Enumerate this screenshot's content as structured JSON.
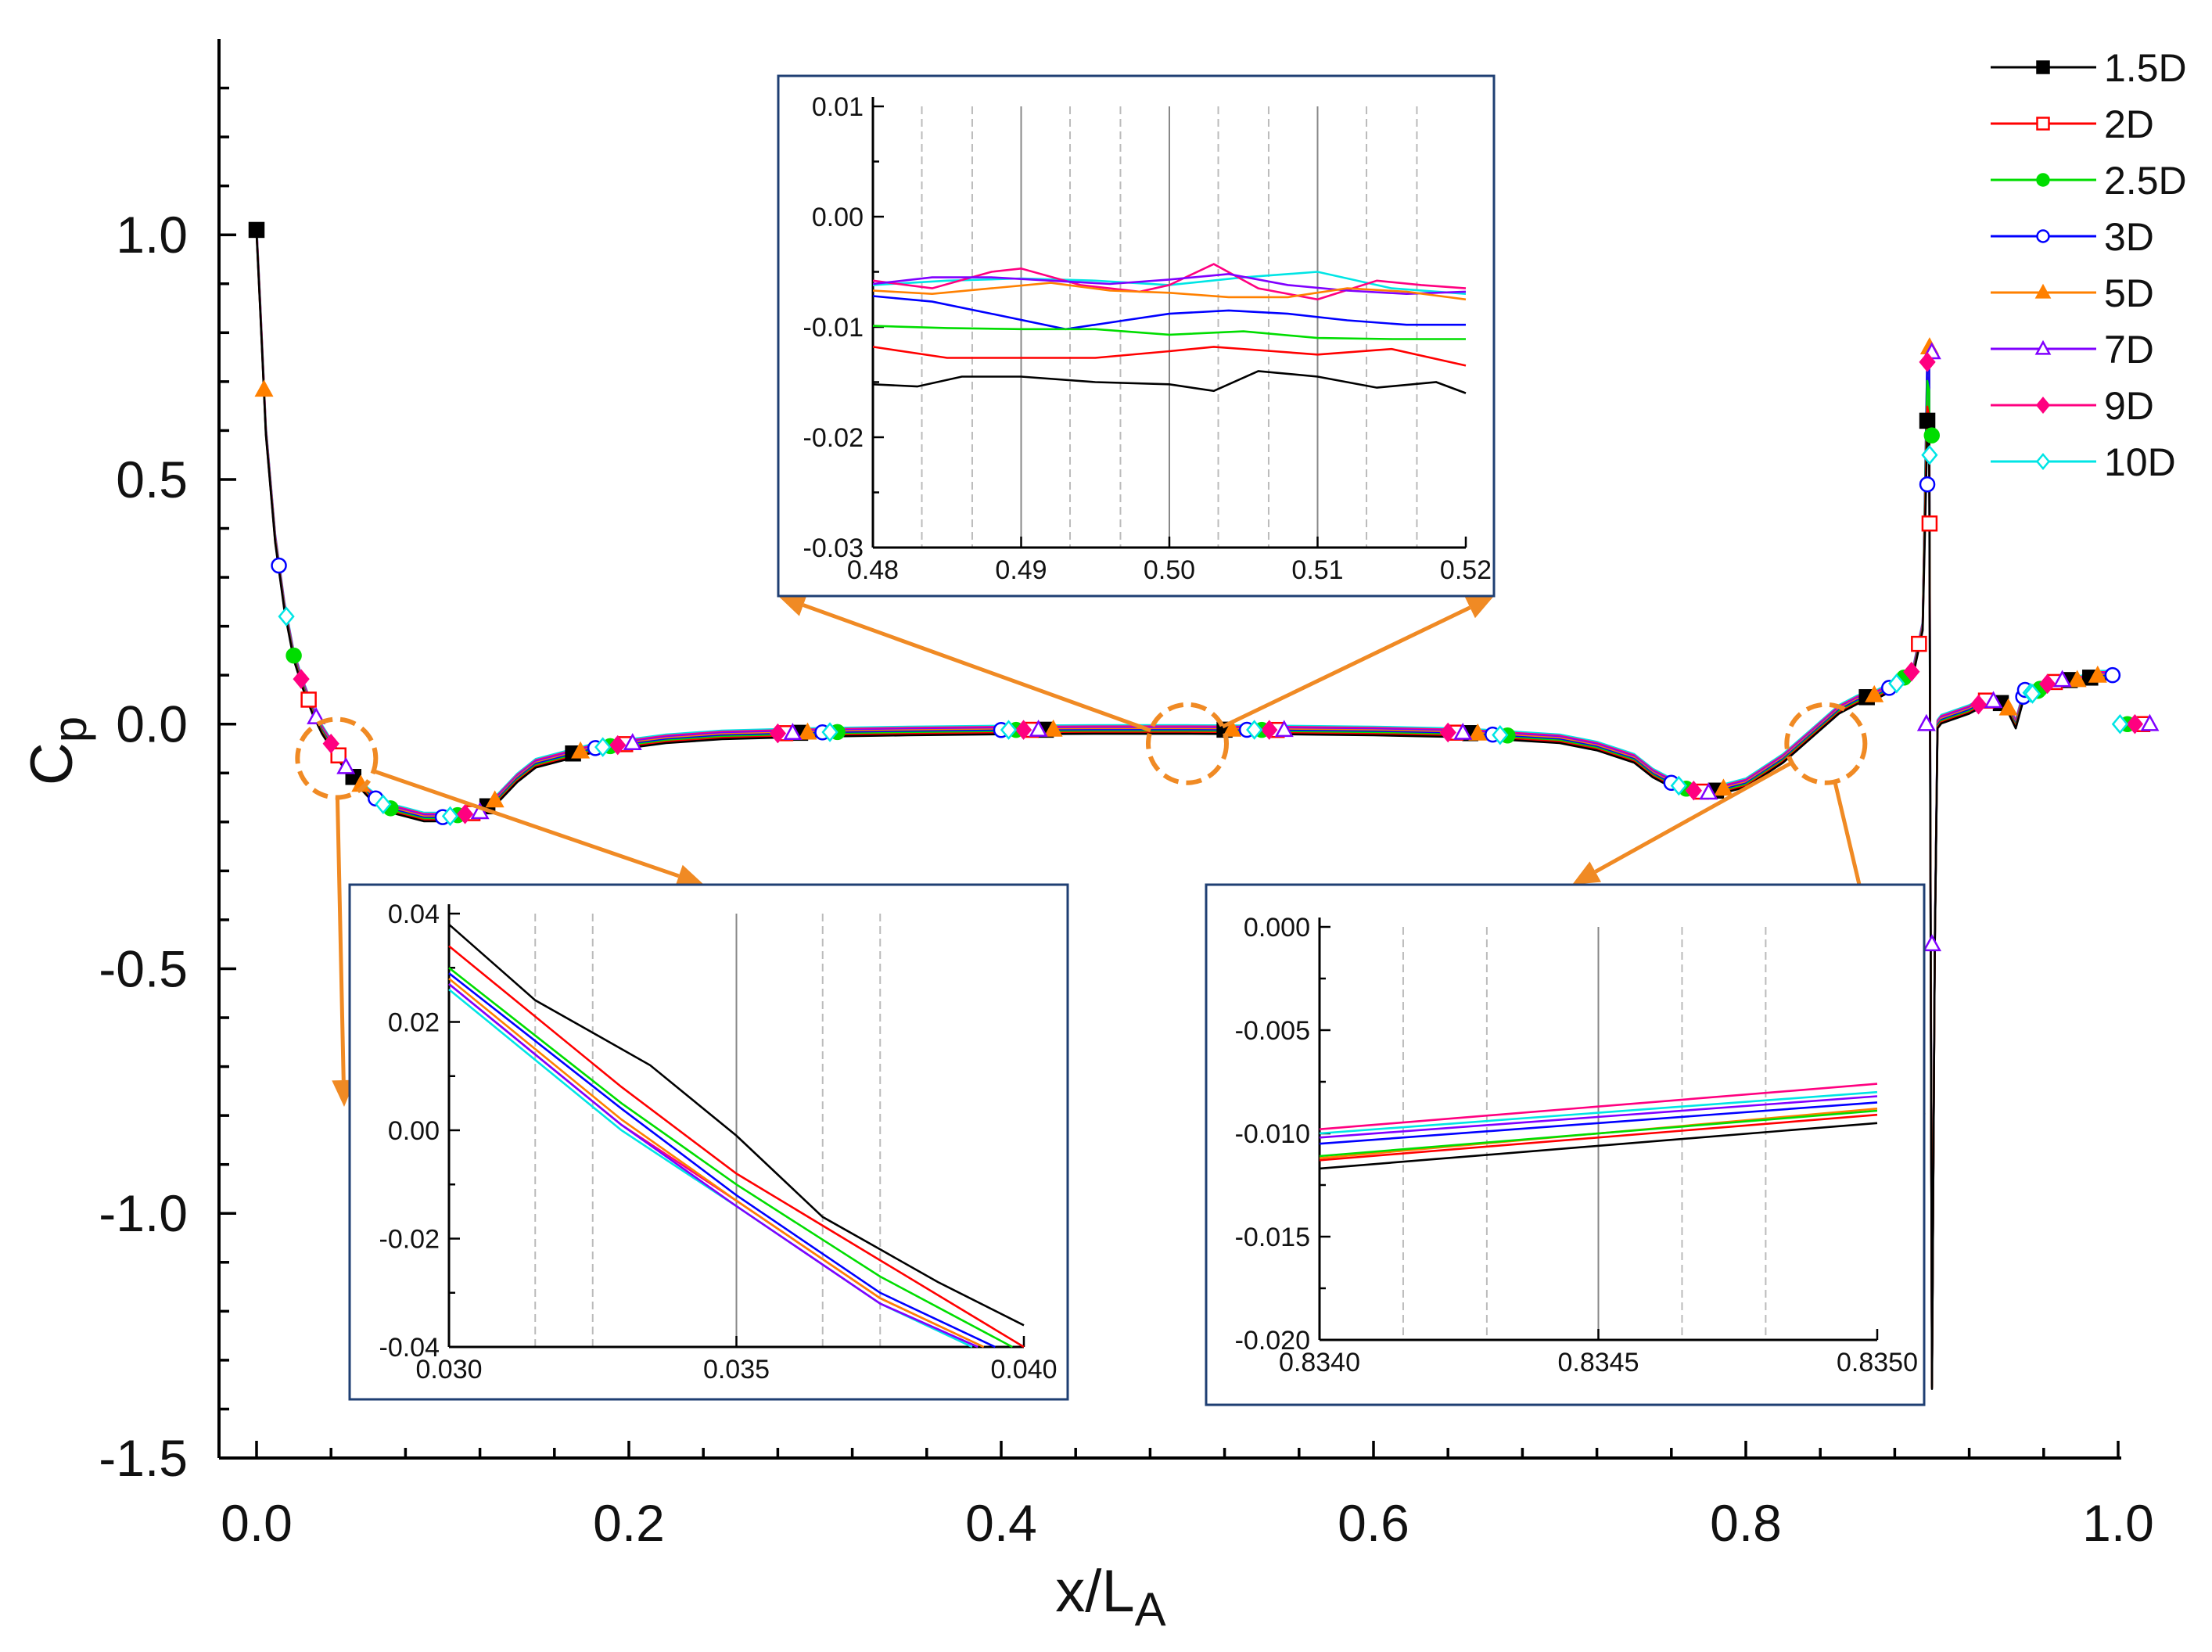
{
  "chart_data": {
    "type": "line",
    "xlabel": "x/L",
    "xlabel_sub": "A",
    "ylabel": "C",
    "ylabel_sub": "p",
    "xlim": [
      0.0,
      1.0
    ],
    "ylim": [
      -1.5,
      1.4
    ],
    "x_tick_labels": [
      "0.0",
      "0.2",
      "0.4",
      "0.6",
      "0.8",
      "1.0"
    ],
    "x_tick_values": [
      0.0,
      0.2,
      0.4,
      0.6,
      0.8,
      1.0
    ],
    "y_tick_labels": [
      "1.0",
      "0.5",
      "0.0",
      "-0.5",
      "-1.0",
      "-1.5"
    ],
    "y_tick_values": [
      1.0,
      0.5,
      0.0,
      -0.5,
      -1.0,
      -1.5
    ],
    "legend_position": "top-right",
    "series": [
      {
        "name": "1.5D",
        "color": "#000000",
        "marker": "square-filled"
      },
      {
        "name": "2D",
        "color": "#ff0000",
        "marker": "square-open"
      },
      {
        "name": "2.5D",
        "color": "#00dd00",
        "marker": "circle-filled"
      },
      {
        "name": "3D",
        "color": "#0000ff",
        "marker": "circle-open"
      },
      {
        "name": "5D",
        "color": "#ff8000",
        "marker": "triangle-filled"
      },
      {
        "name": "7D",
        "color": "#8000ff",
        "marker": "triangle-open"
      },
      {
        "name": "9D",
        "color": "#ff0080",
        "marker": "diamond-filled"
      },
      {
        "name": "10D",
        "color": "#00e5e5",
        "marker": "diamond-open"
      }
    ],
    "main_curve": {
      "x": [
        0.0,
        0.002,
        0.005,
        0.01,
        0.015,
        0.02,
        0.025,
        0.03,
        0.035,
        0.04,
        0.045,
        0.05,
        0.06,
        0.07,
        0.08,
        0.09,
        0.1,
        0.12,
        0.13,
        0.14,
        0.15,
        0.16,
        0.17,
        0.18,
        0.2,
        0.22,
        0.25,
        0.3,
        0.35,
        0.4,
        0.45,
        0.5,
        0.55,
        0.6,
        0.65,
        0.7,
        0.72,
        0.74,
        0.75,
        0.76,
        0.77,
        0.78,
        0.8,
        0.82,
        0.835,
        0.85,
        0.86,
        0.87,
        0.88,
        0.89,
        0.895
      ],
      "y": [
        1.01,
        0.85,
        0.6,
        0.38,
        0.24,
        0.14,
        0.08,
        0.03,
        -0.01,
        -0.04,
        -0.07,
        -0.1,
        -0.14,
        -0.17,
        -0.18,
        -0.19,
        -0.19,
        -0.18,
        -0.15,
        -0.11,
        -0.08,
        -0.07,
        -0.06,
        -0.05,
        -0.04,
        -0.03,
        -0.022,
        -0.017,
        -0.014,
        -0.012,
        -0.011,
        -0.011,
        -0.012,
        -0.014,
        -0.018,
        -0.03,
        -0.045,
        -0.07,
        -0.1,
        -0.12,
        -0.135,
        -0.14,
        -0.12,
        -0.07,
        -0.02,
        0.03,
        0.05,
        0.06,
        0.08,
        0.11,
        0.2
      ]
    },
    "spike_x": [
      0.895,
      0.8975,
      0.8985,
      0.9,
      0.9015,
      0.903,
      0.905
    ],
    "spike_y": [
      0.2,
      0.78,
      0.76,
      -1.35,
      -0.45,
      0.0,
      0.01
    ],
    "tail_x": [
      0.905,
      0.92,
      0.93,
      0.94,
      0.945,
      0.95,
      0.955,
      0.96,
      0.97,
      0.98,
      0.99,
      1.0
    ],
    "tail_y": [
      0.01,
      0.03,
      0.05,
      0.04,
      0.0,
      0.07,
      0.06,
      0.08,
      0.09,
      0.09,
      0.1,
      0.1
    ],
    "spike_point_y": [
      0.62,
      0.41,
      0.59,
      0.49,
      0.77,
      0.76,
      0.74,
      0.55
    ],
    "insets": [
      {
        "id": "left",
        "xlim": [
          0.03,
          0.04
        ],
        "ylim": [
          -0.04,
          0.04
        ],
        "x_tick_labels": [
          "0.030",
          "0.035",
          "0.040"
        ],
        "x_tick_values": [
          0.03,
          0.035,
          0.04
        ],
        "y_tick_labels": [
          "0.04",
          "0.02",
          "0.00",
          "-0.02",
          "-0.04"
        ],
        "y_tick_values": [
          0.04,
          0.02,
          0.0,
          -0.02,
          -0.04
        ],
        "solid_grid": [
          0.035
        ],
        "dashed_grid": [
          0.0315,
          0.0325,
          0.0365,
          0.0375
        ],
        "zoom_center": [
          0.043,
          -0.07
        ],
        "series": [
          {
            "name": "1.5D",
            "x": [
              0.03,
              0.0315,
              0.0325,
              0.0335,
              0.035,
              0.0365,
              0.0375,
              0.0385,
              0.04
            ],
            "y": [
              0.038,
              0.024,
              0.018,
              0.012,
              -0.001,
              -0.016,
              -0.022,
              -0.028,
              -0.036
            ]
          },
          {
            "name": "2D",
            "x": [
              0.03,
              0.033,
              0.035,
              0.0375,
              0.04
            ],
            "y": [
              0.034,
              0.008,
              -0.008,
              -0.024,
              -0.04
            ]
          },
          {
            "name": "2.5D",
            "x": [
              0.03,
              0.033,
              0.035,
              0.0375,
              0.0398
            ],
            "y": [
              0.03,
              0.005,
              -0.01,
              -0.027,
              -0.04
            ]
          },
          {
            "name": "3D",
            "x": [
              0.03,
              0.033,
              0.035,
              0.0375,
              0.0395
            ],
            "y": [
              0.029,
              0.004,
              -0.012,
              -0.03,
              -0.04
            ]
          },
          {
            "name": "5D",
            "x": [
              0.03,
              0.033,
              0.035,
              0.0375,
              0.0393
            ],
            "y": [
              0.028,
              0.002,
              -0.013,
              -0.031,
              -0.04
            ]
          },
          {
            "name": "7D",
            "x": [
              0.03,
              0.033,
              0.035,
              0.0375,
              0.0392
            ],
            "y": [
              0.027,
              0.001,
              -0.014,
              -0.032,
              -0.04
            ]
          },
          {
            "name": "9D",
            "x": [
              0.03,
              0.033,
              0.035,
              0.0375,
              0.0393
            ],
            "y": [
              0.027,
              0.001,
              -0.013,
              -0.031,
              -0.04
            ]
          },
          {
            "name": "10D",
            "x": [
              0.03,
              0.033,
              0.035,
              0.0375,
              0.0391
            ],
            "y": [
              0.026,
              0.0,
              -0.014,
              -0.032,
              -0.04
            ]
          }
        ]
      },
      {
        "id": "middle",
        "xlim": [
          0.48,
          0.52
        ],
        "ylim": [
          -0.03,
          0.01
        ],
        "x_tick_labels": [
          "0.48",
          "0.49",
          "0.50",
          "0.51",
          "0.52"
        ],
        "x_tick_values": [
          0.48,
          0.49,
          0.5,
          0.51,
          0.52
        ],
        "y_tick_labels": [
          "0.01",
          "0.00",
          "-0.01",
          "-0.02",
          "-0.03"
        ],
        "y_tick_values": [
          0.01,
          0.0,
          -0.01,
          -0.02,
          -0.03
        ],
        "solid_grid": [
          0.49,
          0.5,
          0.51
        ],
        "dashed_grid": [
          0.4833,
          0.4867,
          0.4933,
          0.4967,
          0.5033,
          0.5067,
          0.5133,
          0.5167
        ],
        "zoom_center": [
          0.5,
          -0.04
        ],
        "series": [
          {
            "name": "1.5D",
            "x": [
              0.48,
              0.483,
              0.486,
              0.49,
              0.495,
              0.5,
              0.503,
              0.506,
              0.51,
              0.514,
              0.518,
              0.52
            ],
            "y": [
              -0.0152,
              -0.0154,
              -0.0145,
              -0.0145,
              -0.015,
              -0.0152,
              -0.0158,
              -0.014,
              -0.0145,
              -0.0155,
              -0.015,
              -0.016
            ]
          },
          {
            "name": "2D",
            "x": [
              0.48,
              0.485,
              0.49,
              0.495,
              0.5,
              0.503,
              0.507,
              0.51,
              0.515,
              0.52
            ],
            "y": [
              -0.0118,
              -0.0128,
              -0.0128,
              -0.0128,
              -0.0122,
              -0.0118,
              -0.0122,
              -0.0125,
              -0.012,
              -0.0135
            ]
          },
          {
            "name": "2.5D",
            "x": [
              0.48,
              0.485,
              0.49,
              0.495,
              0.5,
              0.505,
              0.51,
              0.515,
              0.52
            ],
            "y": [
              -0.0099,
              -0.0101,
              -0.0102,
              -0.0102,
              -0.0107,
              -0.0104,
              -0.011,
              -0.0111,
              -0.0111
            ]
          },
          {
            "name": "3D",
            "x": [
              0.48,
              0.484,
              0.488,
              0.493,
              0.497,
              0.5,
              0.504,
              0.508,
              0.512,
              0.516,
              0.52
            ],
            "y": [
              -0.0072,
              -0.0077,
              -0.0088,
              -0.0102,
              -0.0094,
              -0.0088,
              -0.0085,
              -0.0088,
              -0.0094,
              -0.0098,
              -0.0098
            ]
          },
          {
            "name": "5D",
            "x": [
              0.48,
              0.484,
              0.488,
              0.492,
              0.496,
              0.5,
              0.504,
              0.508,
              0.512,
              0.516,
              0.52
            ],
            "y": [
              -0.0067,
              -0.007,
              -0.0065,
              -0.006,
              -0.0067,
              -0.0069,
              -0.0073,
              -0.0073,
              -0.0065,
              -0.0068,
              -0.0075
            ]
          },
          {
            "name": "7D",
            "x": [
              0.48,
              0.484,
              0.488,
              0.492,
              0.496,
              0.5,
              0.504,
              0.508,
              0.512,
              0.516,
              0.52
            ],
            "y": [
              -0.0061,
              -0.0055,
              -0.0055,
              -0.0058,
              -0.0061,
              -0.0057,
              -0.0052,
              -0.0062,
              -0.0067,
              -0.007,
              -0.0068
            ]
          },
          {
            "name": "9D",
            "x": [
              0.48,
              0.484,
              0.488,
              0.49,
              0.494,
              0.498,
              0.5,
              0.503,
              0.506,
              0.51,
              0.514,
              0.517,
              0.52
            ],
            "y": [
              -0.0058,
              -0.0065,
              -0.005,
              -0.0047,
              -0.0062,
              -0.0068,
              -0.0062,
              -0.0043,
              -0.0065,
              -0.0075,
              -0.0058,
              -0.0062,
              -0.0065
            ]
          },
          {
            "name": "10D",
            "x": [
              0.48,
              0.485,
              0.49,
              0.495,
              0.5,
              0.505,
              0.51,
              0.515,
              0.52
            ],
            "y": [
              -0.0062,
              -0.0058,
              -0.0056,
              -0.0058,
              -0.0062,
              -0.0055,
              -0.005,
              -0.0065,
              -0.007
            ]
          }
        ]
      },
      {
        "id": "right",
        "xlim": [
          0.834,
          0.835
        ],
        "ylim": [
          -0.02,
          0.0
        ],
        "x_tick_labels": [
          "0.8340",
          "0.8345",
          "0.8350"
        ],
        "x_tick_values": [
          0.834,
          0.8345,
          0.835
        ],
        "y_tick_labels": [
          "0.000",
          "-0.005",
          "-0.010",
          "-0.015",
          "-0.020"
        ],
        "y_tick_values": [
          0.0,
          -0.005,
          -0.01,
          -0.015,
          -0.02
        ],
        "solid_grid": [
          0.8345
        ],
        "dashed_grid": [
          0.83415,
          0.8343,
          0.83465,
          0.8348
        ],
        "zoom_center": [
          0.843,
          0.0
        ],
        "series": [
          {
            "name": "1.5D",
            "x": [
              0.834,
              0.835
            ],
            "y": [
              -0.0117,
              -0.0095
            ]
          },
          {
            "name": "2D",
            "x": [
              0.834,
              0.835
            ],
            "y": [
              -0.0113,
              -0.0091
            ]
          },
          {
            "name": "2.5D",
            "x": [
              0.834,
              0.835
            ],
            "y": [
              -0.0111,
              -0.0089
            ]
          },
          {
            "name": "3D",
            "x": [
              0.834,
              0.835
            ],
            "y": [
              -0.0105,
              -0.0085
            ]
          },
          {
            "name": "5D",
            "x": [
              0.834,
              0.835
            ],
            "y": [
              -0.0112,
              -0.0088
            ]
          },
          {
            "name": "7D",
            "x": [
              0.834,
              0.835
            ],
            "y": [
              -0.0102,
              -0.0082
            ]
          },
          {
            "name": "9D",
            "x": [
              0.834,
              0.835
            ],
            "y": [
              -0.0098,
              -0.0076
            ]
          },
          {
            "name": "10D",
            "x": [
              0.834,
              0.835
            ],
            "y": [
              -0.01,
              -0.008
            ]
          }
        ]
      }
    ]
  }
}
